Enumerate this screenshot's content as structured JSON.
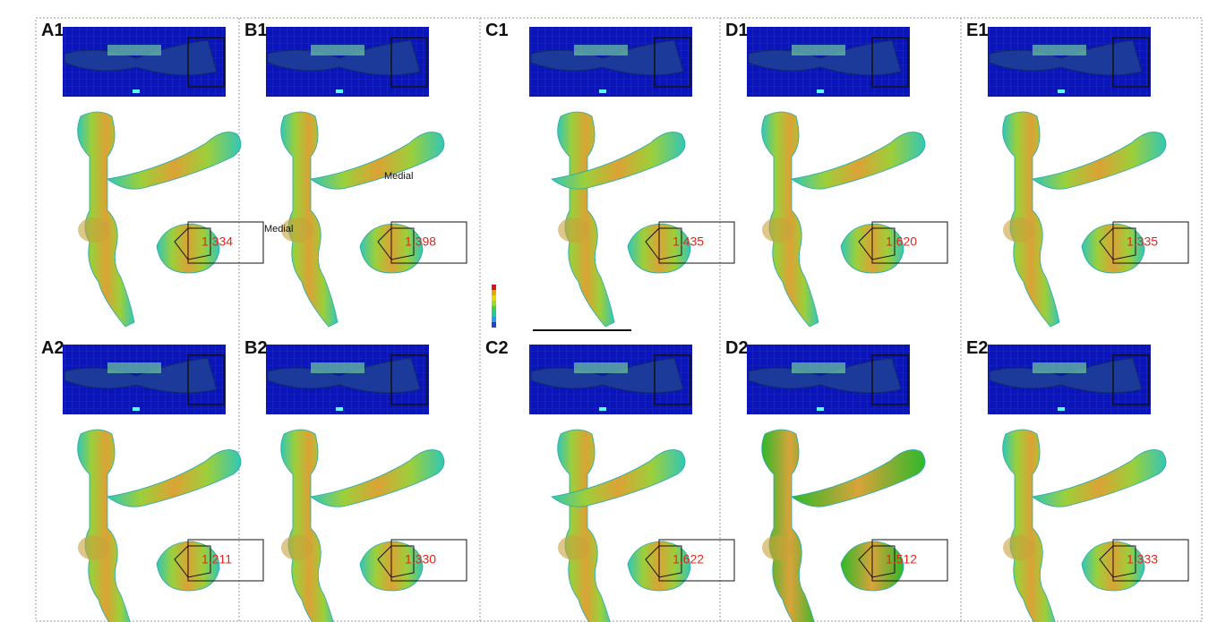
{
  "panels": [
    {
      "label": "A1",
      "value": "1.334"
    },
    {
      "label": "B1",
      "value": "1.398",
      "annotations": [
        "Medial",
        "Medial"
      ]
    },
    {
      "label": "C1",
      "value": "1.435"
    },
    {
      "label": "D1",
      "value": "1.620"
    },
    {
      "label": "E1",
      "value": "1.335"
    },
    {
      "label": "A2",
      "value": "1.211"
    },
    {
      "label": "B2",
      "value": "1.330"
    },
    {
      "label": "C2",
      "value": "1.622"
    },
    {
      "label": "D2",
      "value": "1.512"
    },
    {
      "label": "E2",
      "value": "1.333"
    }
  ]
}
